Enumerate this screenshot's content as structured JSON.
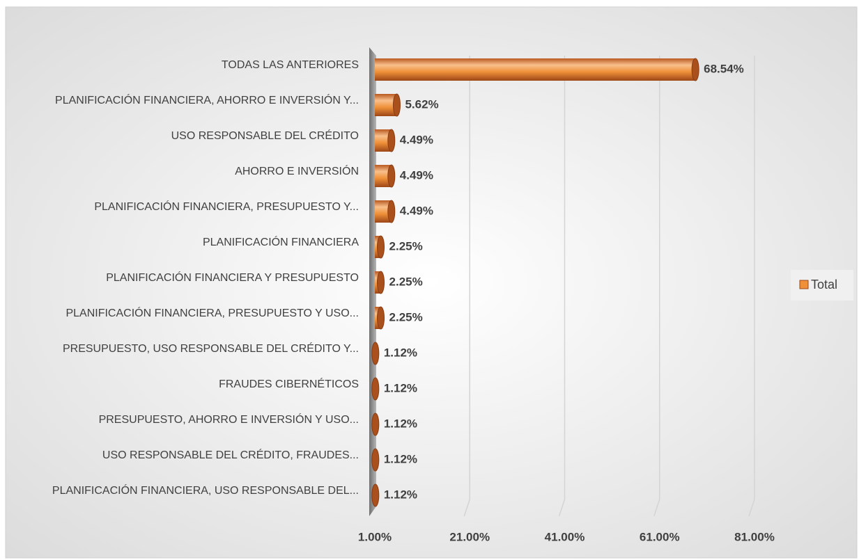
{
  "chart_data": {
    "type": "bar",
    "categories": [
      "TODAS LAS ANTERIORES",
      "PLANIFICACIÓN FINANCIERA, AHORRO E INVERSIÓN Y...",
      "USO RESPONSABLE DEL CRÉDITO",
      "AHORRO E INVERSIÓN",
      "PLANIFICACIÓN FINANCIERA, PRESUPUESTO Y...",
      "PLANIFICACIÓN FINANCIERA",
      "PLANIFICACIÓN FINANCIERA Y PRESUPUESTO",
      "PLANIFICACIÓN FINANCIERA, PRESUPUESTO Y USO...",
      "PRESUPUESTO, USO RESPONSABLE DEL CRÉDITO Y...",
      "FRAUDES CIBERNÉTICOS",
      "PRESUPUESTO, AHORRO E INVERSIÓN Y USO...",
      "USO RESPONSABLE DEL CRÉDITO, FRAUDES...",
      "PLANIFICACIÓN FINANCIERA, USO RESPONSABLE DEL..."
    ],
    "series": [
      {
        "name": "Total",
        "color": "#f0913a",
        "values": [
          68.54,
          5.62,
          4.49,
          4.49,
          4.49,
          2.25,
          2.25,
          2.25,
          1.12,
          1.12,
          1.12,
          1.12,
          1.12
        ],
        "value_labels": [
          "68.54%",
          "5.62%",
          "4.49%",
          "4.49%",
          "4.49%",
          "2.25%",
          "2.25%",
          "2.25%",
          "1.12%",
          "1.12%",
          "1.12%",
          "1.12%",
          "1.12%"
        ]
      }
    ],
    "xlim": [
      1,
      81
    ],
    "xticks": [
      {
        "value": 1,
        "label": "1.00%"
      },
      {
        "value": 21,
        "label": "21.00%"
      },
      {
        "value": 41,
        "label": "41.00%"
      },
      {
        "value": 61,
        "label": "61.00%"
      },
      {
        "value": 81,
        "label": "81.00%"
      }
    ],
    "grid": true,
    "legend": "right"
  }
}
